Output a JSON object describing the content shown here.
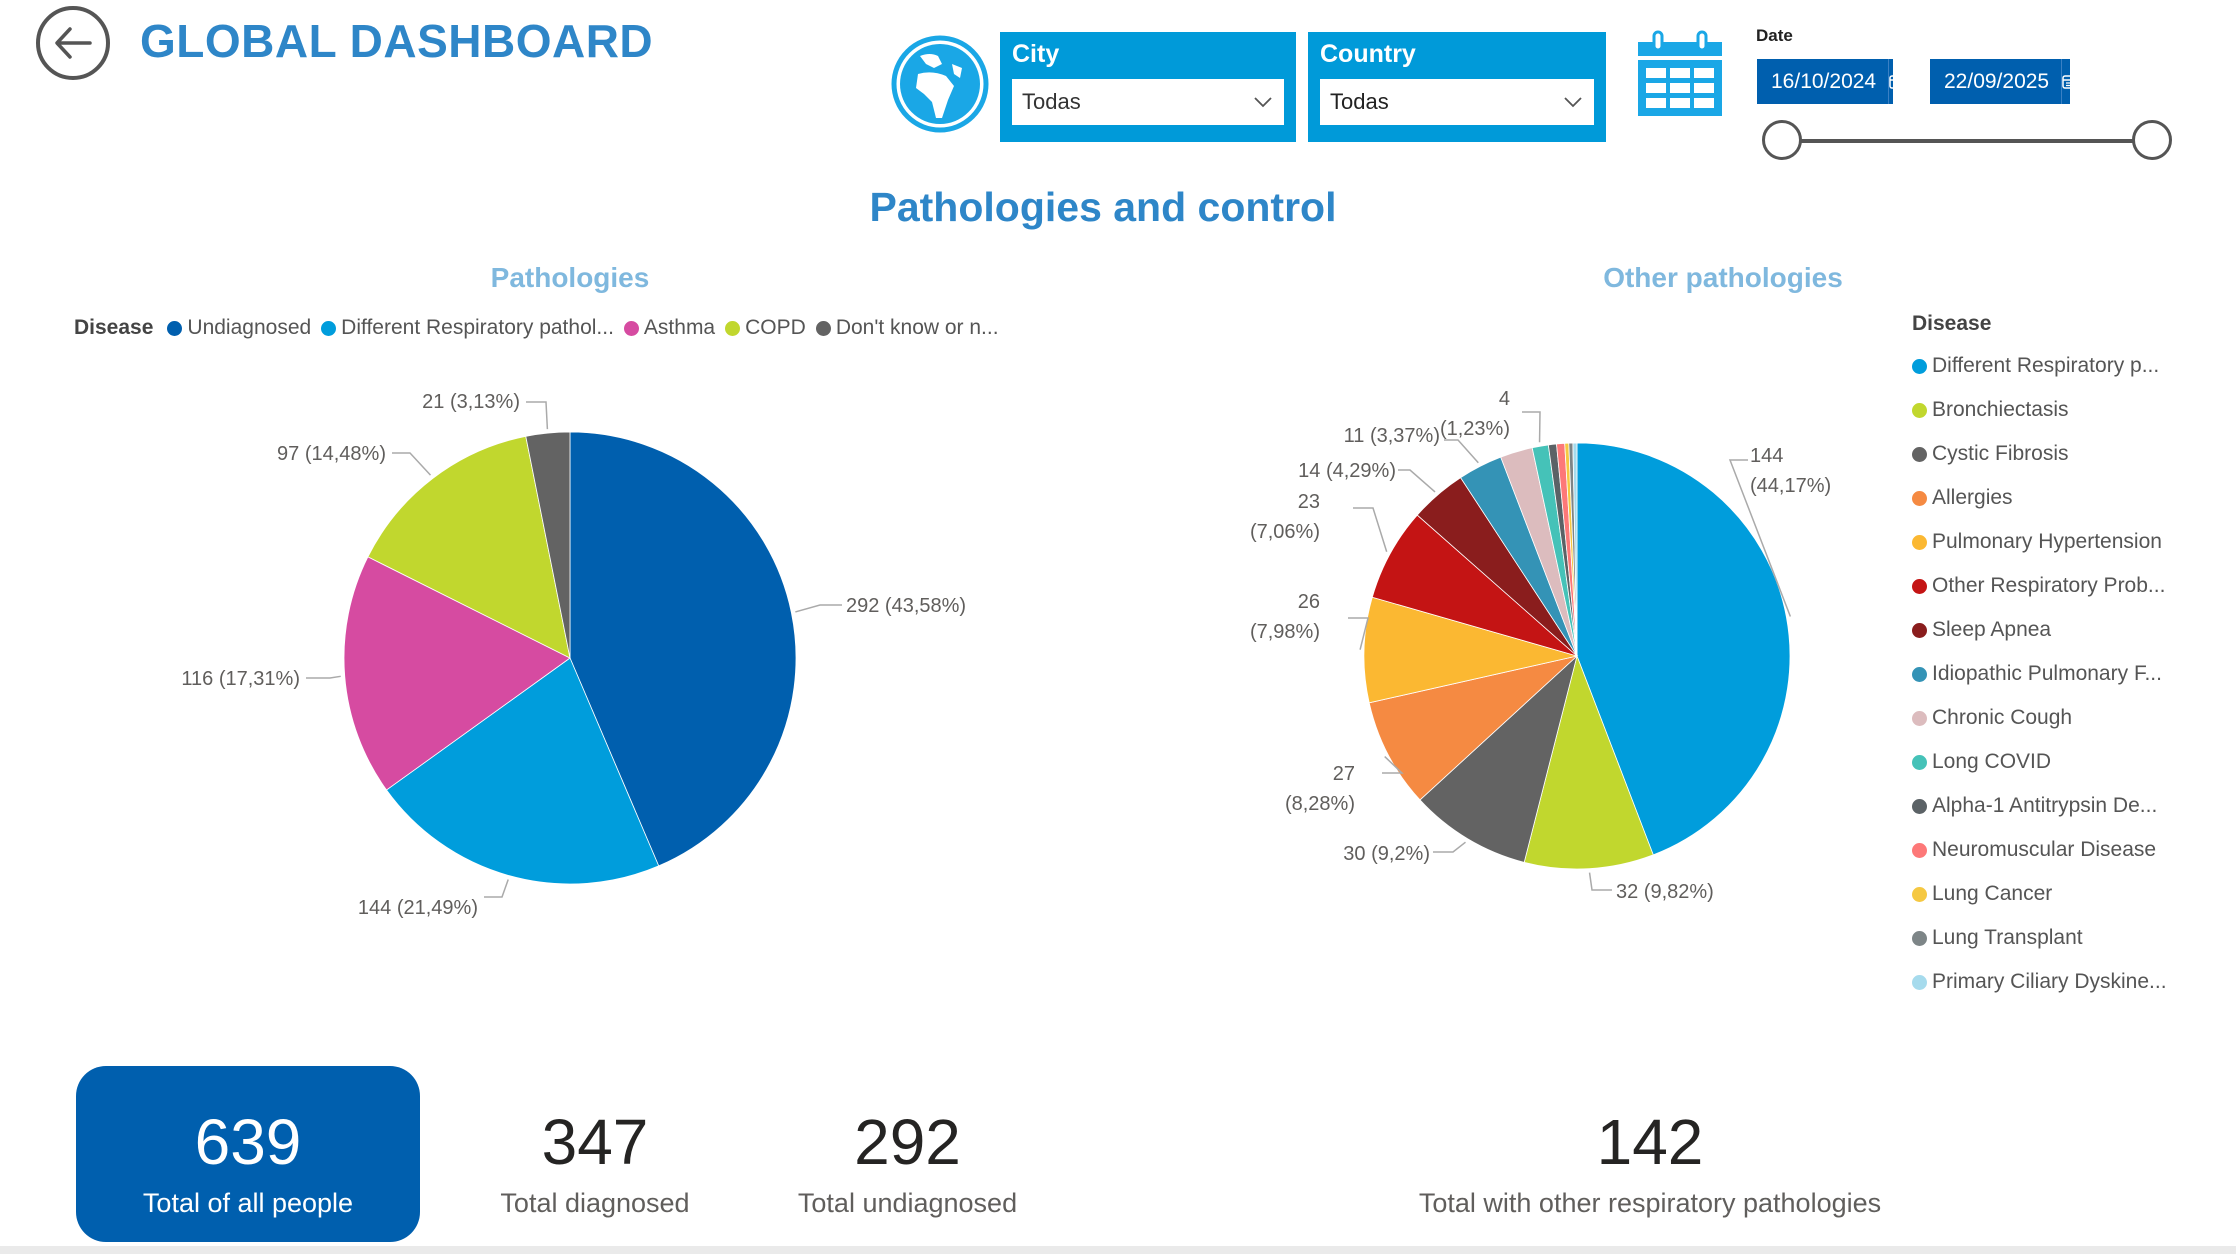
{
  "header": {
    "title": "GLOBAL DASHBOARD",
    "back_icon": "arrow-left-circle-icon",
    "globe_icon": "globe-icon",
    "calendar_icon": "calendar-icon"
  },
  "filters": {
    "city": {
      "label": "City",
      "value": "Todas"
    },
    "country": {
      "label": "Country",
      "value": "Todas"
    },
    "date": {
      "label": "Date",
      "start": "16/10/2024",
      "end": "22/09/2025",
      "range_fraction": [
        0,
        1
      ]
    }
  },
  "section_title": "Pathologies and control",
  "colors": {
    "accent": "#2e86c8",
    "slicer_bg": "#009ad9",
    "date_bg": "#005fae",
    "kpi_bg": "#005fae",
    "subtitle": "#7fb8de"
  },
  "chart_data": [
    {
      "type": "pie",
      "title": "Pathologies",
      "legend_title": "Disease",
      "legend_position": "top-left",
      "categories": [
        "Undiagnosed",
        "Different Respiratory pathol...",
        "Asthma",
        "COPD",
        "Don't know or n..."
      ],
      "values": [
        292,
        144,
        116,
        97,
        21
      ],
      "percent_labels": [
        "43,58%",
        "21,49%",
        "17,31%",
        "14,48%",
        "3,13%"
      ],
      "data_labels": [
        "292 (43,58%)",
        "144 (21,49%)",
        "116 (17,31%)",
        "97 (14,48%)",
        "21 (3,13%)"
      ],
      "colors": [
        "#005fae",
        "#009ddc",
        "#d64ba1",
        "#c1d72e",
        "#636363"
      ]
    },
    {
      "type": "pie",
      "title": "Other pathologies",
      "legend_title": "Disease",
      "legend_position": "right",
      "categories": [
        "Different Respiratory p...",
        "Bronchiectasis",
        "Cystic Fibrosis",
        "Allergies",
        "Pulmonary Hypertension",
        "Other Respiratory Prob...",
        "Sleep Apnea",
        "Idiopathic Pulmonary F...",
        "Chronic Cough",
        "Long COVID",
        "Alpha-1 Antitrypsin De...",
        "Neuromuscular Disease",
        "Lung Cancer",
        "Lung Transplant",
        "Primary Ciliary Dyskine..."
      ],
      "values": [
        144,
        32,
        30,
        27,
        26,
        23,
        14,
        11,
        8,
        4,
        2,
        2,
        1,
        1,
        1
      ],
      "data_labels": [
        "144 (44,17%)",
        "32 (9,82%)",
        "30 (9,2%)",
        "27 (8,28%)",
        "26 (7,98%)",
        "23 (7,06%)",
        "14 (4,29%)",
        "11 (3,37%)",
        "",
        "4 (1,23%)",
        "",
        "",
        "",
        "",
        ""
      ],
      "colors": [
        "#009ddc",
        "#c1d72e",
        "#636363",
        "#f58a42",
        "#fbb832",
        "#c41414",
        "#8a1d1d",
        "#3493b6",
        "#dcbcbe",
        "#45c2b8",
        "#5b6266",
        "#fd7878",
        "#f5c842",
        "#7d8587",
        "#a6dbed"
      ]
    }
  ],
  "kpis": [
    {
      "value": "639",
      "label": "Total of all people"
    },
    {
      "value": "347",
      "label": "Total diagnosed"
    },
    {
      "value": "292",
      "label": "Total undiagnosed"
    },
    {
      "value": "142",
      "label": "Total with other respiratory pathologies"
    }
  ]
}
